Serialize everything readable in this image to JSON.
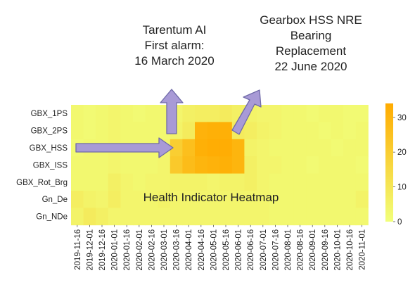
{
  "annotations": {
    "left": [
      "Tarentum AI",
      "First alarm:",
      "16 March 2020"
    ],
    "right": [
      "Gearbox HSS NRE",
      "Bearing",
      "Replacement",
      "22 June 2020"
    ],
    "overlay": "Health Indicator Heatmap"
  },
  "colors": {
    "low": "#f1ff7a",
    "high": "#ffab00",
    "arrow_fill": "#a89ad6",
    "arrow_stroke": "#6f6aa8",
    "tick_text": "#222222"
  },
  "chart_data": {
    "type": "heatmap",
    "title": "",
    "xlabel": "",
    "ylabel": "",
    "rows": [
      "GBX_1PS",
      "GBX_2PS",
      "GBX_HSS",
      "GBX_ISS",
      "GBX_Rot_Brg",
      "Gn_De",
      "Gn_NDe"
    ],
    "x_tick_labels": [
      "2019-11-16",
      "2019-12-01",
      "2019-12-16",
      "2020-01-01",
      "2020-01-16",
      "2020-02-01",
      "2020-02-16",
      "2020-03-01",
      "2020-03-16",
      "2020-04-01",
      "2020-04-16",
      "2020-05-01",
      "2020-05-16",
      "2020-06-01",
      "2020-06-16",
      "2020-07-01",
      "2020-07-16",
      "2020-08-01",
      "2020-08-16",
      "2020-09-01",
      "2020-09-16",
      "2020-10-01",
      "2020-10-16",
      "2020-11-01"
    ],
    "values": [
      [
        3,
        2,
        3,
        4,
        3,
        2,
        3,
        3,
        4,
        6,
        7,
        7,
        8,
        6,
        5,
        4,
        4,
        3,
        3,
        2,
        3,
        3,
        2,
        2
      ],
      [
        3,
        2,
        3,
        4,
        3,
        3,
        3,
        3,
        5,
        8,
        31,
        32,
        32,
        8,
        7,
        5,
        4,
        3,
        3,
        3,
        2,
        3,
        2,
        3
      ],
      [
        2,
        3,
        3,
        4,
        3,
        3,
        3,
        4,
        20,
        26,
        32,
        33,
        33,
        30,
        5,
        4,
        3,
        3,
        3,
        3,
        3,
        2,
        3,
        3
      ],
      [
        3,
        3,
        3,
        4,
        3,
        3,
        3,
        4,
        22,
        27,
        30,
        31,
        32,
        30,
        6,
        4,
        4,
        3,
        3,
        2,
        3,
        3,
        3,
        2
      ],
      [
        3,
        3,
        3,
        6,
        4,
        3,
        4,
        4,
        5,
        5,
        5,
        4,
        5,
        5,
        6,
        4,
        3,
        3,
        3,
        3,
        3,
        3,
        3,
        3
      ],
      [
        7,
        5,
        4,
        7,
        4,
        4,
        4,
        5,
        4,
        4,
        4,
        4,
        4,
        4,
        4,
        4,
        3,
        3,
        3,
        3,
        3,
        3,
        3,
        5
      ],
      [
        5,
        8,
        6,
        4,
        4,
        4,
        4,
        4,
        4,
        4,
        4,
        4,
        4,
        4,
        4,
        4,
        3,
        3,
        3,
        3,
        3,
        3,
        3,
        3
      ]
    ],
    "zlim": [
      0,
      34
    ],
    "colorbar_ticks": [
      0,
      10,
      20,
      30
    ],
    "colormap": "Wistia",
    "arrows": [
      {
        "type": "horizontal",
        "points_to": "GBX_HSS"
      },
      {
        "type": "vertical",
        "points_to": "Tarentum AI first alarm"
      },
      {
        "type": "diagonal",
        "points_to": "Gearbox HSS NRE bearing replacement"
      }
    ]
  }
}
